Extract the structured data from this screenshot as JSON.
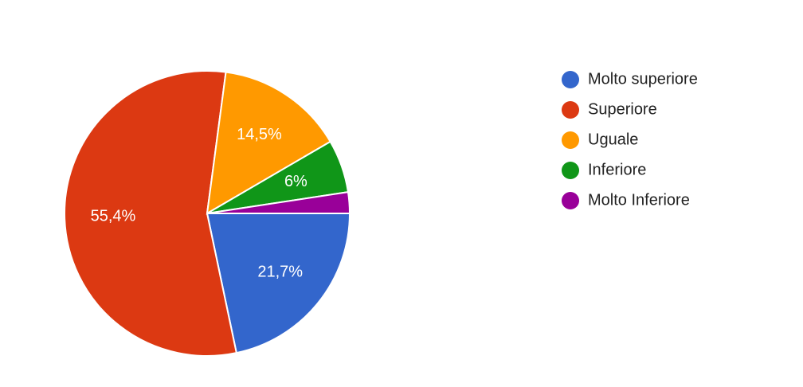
{
  "chart_data": {
    "type": "pie",
    "categories": [
      "Molto superiore",
      "Superiore",
      "Uguale",
      "Inferiore",
      "Molto Inferiore"
    ],
    "values": [
      21.7,
      55.4,
      14.5,
      6,
      2.4
    ],
    "value_labels": [
      "21,7%",
      "55,4%",
      "14,5%",
      "6%",
      null
    ],
    "colors": [
      "#3366cc",
      "#dc3912",
      "#ff9900",
      "#109618",
      "#990099"
    ],
    "legend": "right"
  }
}
